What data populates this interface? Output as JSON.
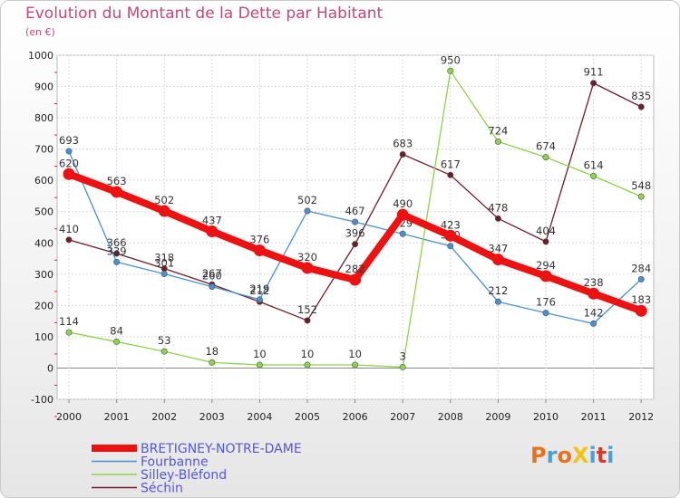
{
  "colors": {
    "title": "#c2487a",
    "grid": "#d9d9d9",
    "zero_line": "#888888",
    "axis_ticks": "#cc3333",
    "legend_text": "#5555dd"
  },
  "brand": {
    "text": "ProXiti",
    "letter_colors": [
      "#e8731c",
      "#4aa0d8",
      "#e8731c",
      "#f2c318",
      "#4aa0d8",
      "#d63a2a",
      "#4aa0d8"
    ]
  },
  "chart_data": {
    "type": "line",
    "title": "Evolution du Montant de la Dette par Habitant",
    "subtitle": "(en €)",
    "xlabel": "",
    "ylabel": "",
    "categories": [
      "2000",
      "2001",
      "2002",
      "2003",
      "2004",
      "2005",
      "2006",
      "2007",
      "2008",
      "2009",
      "2010",
      "2011",
      "2012"
    ],
    "ylim": [
      -100,
      1000
    ],
    "yticks": [
      "-100",
      "0",
      "100",
      "200",
      "300",
      "400",
      "500",
      "600",
      "700",
      "800",
      "900",
      "1000"
    ],
    "grid": true,
    "legend_position": "bottom-left",
    "series": [
      {
        "name": "Séchin",
        "color": "#6e1e28",
        "emphasis": false,
        "values": [
          410,
          366,
          318,
          267,
          212,
          152,
          396,
          683,
          617,
          478,
          404,
          911,
          835
        ],
        "labels": [
          "410",
          "366",
          "318",
          "267",
          "212",
          "152",
          "396",
          "683",
          "617",
          "478",
          "404",
          "911",
          "835"
        ]
      },
      {
        "name": "Fourbanne",
        "color": "#4a90d0",
        "emphasis": false,
        "values": [
          693,
          339,
          301,
          260,
          219,
          502,
          467,
          429,
          390,
          212,
          176,
          142,
          284
        ],
        "labels": [
          "693",
          "339",
          "301",
          "260",
          "219",
          "502",
          "467",
          "429",
          "390",
          "212",
          "176",
          "142",
          "284"
        ]
      },
      {
        "name": "Silley-Bléfond",
        "color": "#8cd44a",
        "emphasis": false,
        "values": [
          114,
          84,
          53,
          18,
          10,
          10,
          10,
          3,
          950,
          724,
          674,
          614,
          548
        ],
        "labels": [
          "114",
          "84",
          "53",
          "18",
          "10",
          "10",
          "10",
          "3",
          "950",
          "724",
          "674",
          "614",
          "548"
        ]
      },
      {
        "name": "BRETIGNEY-NOTRE-DAME",
        "color": "#ee1111",
        "emphasis": true,
        "values": [
          620,
          563,
          502,
          437,
          376,
          320,
          282,
          490,
          423,
          347,
          294,
          238,
          183
        ],
        "labels": [
          "620",
          "563",
          "502",
          "437",
          "376",
          "320",
          "282",
          "490",
          "423",
          "347",
          "294",
          "238",
          "183"
        ]
      }
    ],
    "legend": [
      "BRETIGNEY-NOTRE-DAME",
      "Fourbanne",
      "Silley-Bléfond",
      "Séchin"
    ]
  }
}
